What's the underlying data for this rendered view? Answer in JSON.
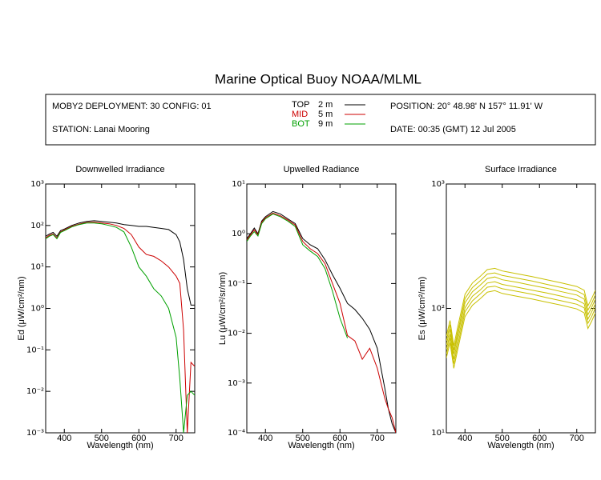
{
  "title": "Marine Optical Buoy NOAA/MLML",
  "header": {
    "deployment": "MOBY2 DEPLOYMENT: 30 CONFIG: 01",
    "station": "STATION: Lanai Mooring",
    "position": "POSITION: 20° 48.98' N   157° 11.91' W",
    "date": "DATE: 00:35 (GMT) 12 Jul 2005",
    "legend": [
      {
        "name": "TOP",
        "depth": "2  m",
        "color": "#000000"
      },
      {
        "name": "MID",
        "depth": "5  m",
        "color": "#cc0000"
      },
      {
        "name": "BOT",
        "depth": "9  m",
        "color": "#00a000"
      }
    ]
  },
  "chart_data": [
    {
      "type": "line",
      "title": "Downwelled Irradiance",
      "xlabel": "Wavelength (nm)",
      "ylabel": "Ed  (μW/cm²/nm)",
      "yscale": "log",
      "xlim": [
        350,
        750
      ],
      "xticks": [
        400,
        500,
        600,
        700
      ],
      "ylim": [
        0.001,
        1000
      ],
      "yticks": [
        {
          "value": 0.001,
          "label": "10⁻³"
        },
        {
          "value": 0.01,
          "label": "10⁻²"
        },
        {
          "value": 0.1,
          "label": "10⁻¹"
        },
        {
          "value": 1,
          "label": "10⁰"
        },
        {
          "value": 10,
          "label": "10¹"
        },
        {
          "value": 100,
          "label": "10²"
        },
        {
          "value": 1000,
          "label": "10³"
        }
      ],
      "x": [
        350,
        360,
        370,
        380,
        390,
        400,
        420,
        440,
        460,
        480,
        500,
        520,
        540,
        560,
        580,
        600,
        620,
        640,
        660,
        680,
        700,
        710,
        720,
        730,
        740,
        750
      ],
      "series": [
        {
          "color": "#000000",
          "values": [
            55,
            62,
            68,
            55,
            75,
            82,
            100,
            115,
            125,
            130,
            125,
            120,
            115,
            105,
            100,
            95,
            95,
            90,
            85,
            80,
            60,
            40,
            15,
            3,
            1.2,
            1.2
          ]
        },
        {
          "color": "#cc0000",
          "values": [
            50,
            58,
            62,
            50,
            70,
            78,
            95,
            108,
            118,
            120,
            115,
            110,
            100,
            85,
            60,
            30,
            20,
            18,
            14,
            10,
            6,
            4,
            0.3,
            0.001,
            0.05,
            0.04
          ]
        },
        {
          "color": "#00a000",
          "values": [
            48,
            55,
            60,
            48,
            68,
            75,
            92,
            105,
            115,
            115,
            110,
            100,
            90,
            70,
            30,
            10,
            6,
            3,
            2,
            1,
            0.2,
            0.02,
            0.001,
            0.008,
            0.01,
            0.008
          ]
        }
      ]
    },
    {
      "type": "line",
      "title": "Upwelled Radiance",
      "xlabel": "Wavelength (nm)",
      "ylabel": "Lu  (μW/cm²/sr/nm)",
      "yscale": "log",
      "xlim": [
        350,
        750
      ],
      "xticks": [
        400,
        500,
        600,
        700
      ],
      "ylim": [
        0.0001,
        10
      ],
      "yticks": [
        {
          "value": 0.0001,
          "label": "10⁻⁴"
        },
        {
          "value": 0.001,
          "label": "10⁻³"
        },
        {
          "value": 0.01,
          "label": "10⁻²"
        },
        {
          "value": 0.1,
          "label": "10⁻¹"
        },
        {
          "value": 1,
          "label": "10⁰"
        },
        {
          "value": 10,
          "label": "10¹"
        }
      ],
      "x": [
        350,
        360,
        370,
        380,
        390,
        400,
        420,
        440,
        460,
        480,
        500,
        520,
        540,
        560,
        580,
        600,
        620,
        640,
        660,
        680,
        700,
        710,
        720,
        730,
        740,
        750
      ],
      "series": [
        {
          "color": "#000000",
          "values": [
            0.8,
            1.0,
            1.3,
            1.0,
            1.8,
            2.2,
            2.8,
            2.5,
            2.0,
            1.6,
            0.8,
            0.6,
            0.5,
            0.3,
            0.15,
            0.08,
            0.04,
            0.03,
            0.02,
            0.012,
            0.005,
            0.002,
            0.0008,
            0.0003,
            0.00015,
            0.0001
          ]
        },
        {
          "color": "#cc0000",
          "values": [
            0.75,
            0.95,
            1.2,
            0.95,
            1.7,
            2.1,
            2.6,
            2.3,
            1.9,
            1.5,
            0.7,
            0.5,
            0.4,
            0.25,
            0.1,
            0.04,
            0.009,
            0.007,
            0.003,
            0.005,
            0.002,
            0.001,
            0.0005,
            0.0003,
            0.0002,
            0.0001
          ]
        },
        {
          "color": "#00a000",
          "values": [
            0.7,
            0.9,
            1.1,
            0.9,
            1.6,
            2.0,
            2.5,
            2.2,
            1.8,
            1.4,
            0.6,
            0.45,
            0.35,
            0.2,
            0.07,
            0.02,
            0.008,
            null,
            null,
            null,
            null,
            null,
            null,
            null,
            null,
            null
          ]
        }
      ]
    },
    {
      "type": "line",
      "title": "Surface Irradiance",
      "xlabel": "Wavelength (nm)",
      "ylabel": "Es  (μW/cm²/nm)",
      "yscale": "log",
      "xlim": [
        350,
        750
      ],
      "xticks": [
        400,
        500,
        600,
        700
      ],
      "ylim": [
        10,
        1000
      ],
      "yticks": [
        {
          "value": 10,
          "label": "10¹"
        },
        {
          "value": 100,
          "label": "10²"
        },
        {
          "value": 1000,
          "label": "10³"
        }
      ],
      "x": [
        350,
        360,
        370,
        380,
        390,
        400,
        420,
        440,
        460,
        480,
        500,
        540,
        580,
        620,
        660,
        700,
        720,
        730,
        740,
        750
      ],
      "series": [
        {
          "color": "#c8c000",
          "values": [
            60,
            80,
            50,
            70,
            95,
            130,
            160,
            180,
            205,
            210,
            200,
            190,
            180,
            170,
            160,
            150,
            140,
            105,
            120,
            140
          ]
        },
        {
          "color": "#c8c000",
          "values": [
            55,
            74,
            46,
            64,
            87,
            120,
            147,
            166,
            189,
            193,
            184,
            175,
            166,
            156,
            147,
            138,
            129,
            97,
            110,
            129
          ]
        },
        {
          "color": "#c8c000",
          "values": [
            51,
            68,
            43,
            60,
            81,
            111,
            136,
            153,
            174,
            179,
            170,
            162,
            153,
            145,
            136,
            128,
            119,
            89,
            102,
            119
          ]
        },
        {
          "color": "#c8c000",
          "values": [
            47,
            62,
            39,
            55,
            74,
            101,
            125,
            140,
            160,
            164,
            156,
            148,
            140,
            133,
            125,
            117,
            109,
            82,
            94,
            109
          ]
        },
        {
          "color": "#c8c000",
          "values": [
            43,
            58,
            36,
            50,
            68,
            94,
            115,
            130,
            148,
            151,
            144,
            137,
            130,
            122,
            115,
            108,
            101,
            76,
            86,
            101
          ]
        },
        {
          "color": "#c8c000",
          "values": [
            40,
            53,
            33,
            46,
            63,
            86,
            106,
            119,
            135,
            139,
            132,
            125,
            119,
            112,
            106,
            99,
            92,
            69,
            79,
            92
          ]
        }
      ]
    }
  ]
}
